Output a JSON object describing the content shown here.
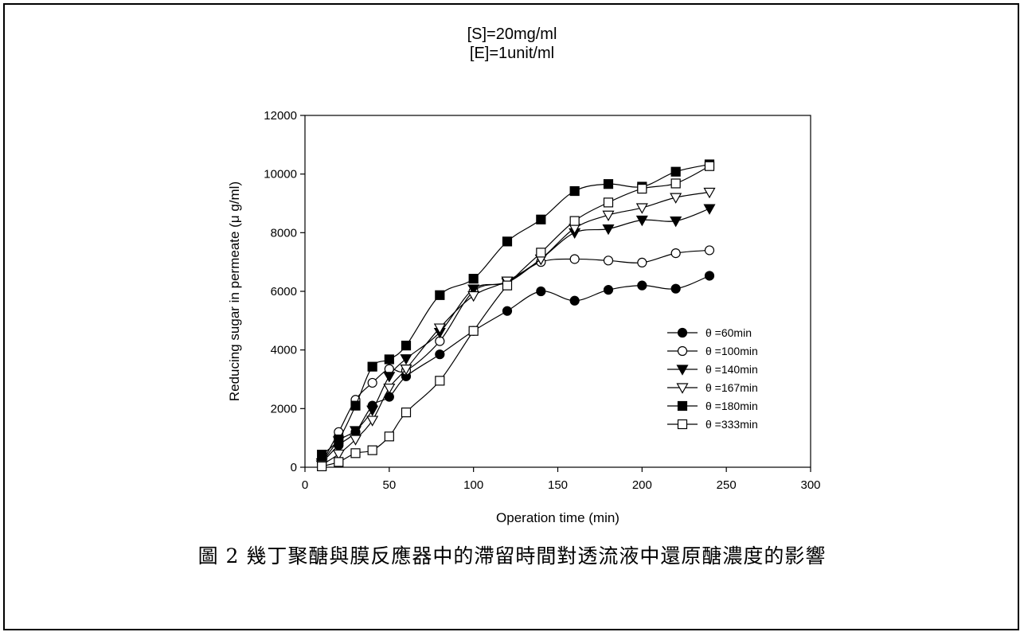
{
  "conditions": [
    "[S]=20mg/ml",
    "[E]=1unit/ml"
  ],
  "caption": "圖 2 幾丁聚醣與膜反應器中的滯留時間對透流液中還原醣濃度的影響",
  "chart_data": {
    "type": "line",
    "title": "",
    "xlabel": "Operation time (min)",
    "ylabel": "Reducing sugar in permeate (μ g/ml)",
    "xlim": [
      0,
      300
    ],
    "ylim": [
      0,
      12000
    ],
    "xticks": [
      0,
      50,
      100,
      150,
      200,
      250,
      300
    ],
    "yticks": [
      0,
      2000,
      4000,
      6000,
      8000,
      10000,
      12000
    ],
    "grid": false,
    "legend_position": "lower-right",
    "series": [
      {
        "name": "θ =60min",
        "marker": "circle",
        "fill": "filled",
        "x": [
          10,
          20,
          30,
          40,
          50,
          60,
          80,
          100,
          120,
          140,
          160,
          180,
          200,
          220,
          240
        ],
        "y": [
          150,
          750,
          1200,
          2100,
          2400,
          3100,
          3850,
          4650,
          5330,
          6000,
          5680,
          6050,
          6200,
          6090,
          6530
        ]
      },
      {
        "name": "θ =100min",
        "marker": "circle",
        "fill": "open",
        "x": [
          10,
          20,
          30,
          40,
          50,
          60,
          80,
          100,
          120,
          140,
          160,
          180,
          200,
          220,
          240
        ],
        "y": [
          150,
          1200,
          2300,
          2880,
          3350,
          3300,
          4300,
          6000,
          6320,
          7000,
          7100,
          7050,
          6980,
          7300,
          7400
        ]
      },
      {
        "name": "θ =140min",
        "marker": "triangle-down",
        "fill": "filled",
        "x": [
          10,
          20,
          30,
          40,
          50,
          60,
          80,
          100,
          120,
          140,
          160,
          180,
          200,
          220,
          240
        ],
        "y": [
          150,
          900,
          1250,
          1950,
          3100,
          3700,
          4600,
          6080,
          6300,
          7100,
          8000,
          8130,
          8430,
          8400,
          8820
        ]
      },
      {
        "name": "θ =167min",
        "marker": "triangle-down",
        "fill": "open",
        "x": [
          10,
          20,
          30,
          40,
          50,
          60,
          80,
          100,
          120,
          140,
          160,
          180,
          200,
          220,
          240
        ],
        "y": [
          80,
          450,
          950,
          1600,
          2700,
          3350,
          4750,
          5850,
          6350,
          7100,
          8150,
          8600,
          8850,
          9200,
          9380
        ]
      },
      {
        "name": "θ =180min",
        "marker": "square",
        "fill": "filled",
        "x": [
          10,
          20,
          30,
          40,
          50,
          60,
          80,
          100,
          120,
          140,
          160,
          180,
          200,
          220,
          240
        ],
        "y": [
          430,
          950,
          2100,
          3430,
          3680,
          4150,
          5870,
          6430,
          7700,
          8450,
          9420,
          9660,
          9570,
          10080,
          10330
        ]
      },
      {
        "name": "θ =333min",
        "marker": "square",
        "fill": "open",
        "x": [
          10,
          20,
          30,
          40,
          50,
          60,
          80,
          100,
          120,
          140,
          160,
          180,
          200,
          220,
          240
        ],
        "y": [
          30,
          180,
          480,
          580,
          1050,
          1870,
          2950,
          4650,
          6200,
          7320,
          8400,
          9030,
          9500,
          9680,
          10270
        ]
      }
    ]
  }
}
